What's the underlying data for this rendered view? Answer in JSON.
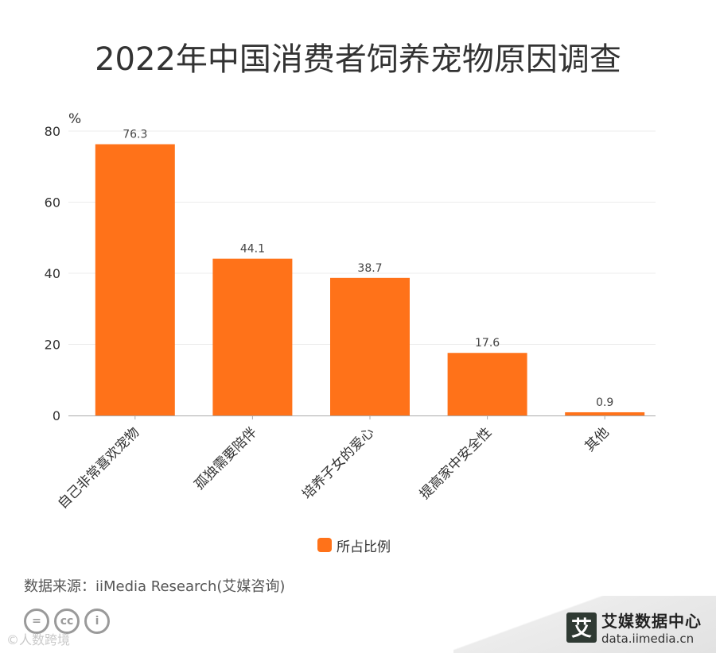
{
  "title": "2022年中国消费者饲养宠物原因调查",
  "chart_data": {
    "type": "bar",
    "title": "2022年中国消费者饲养宠物原因调查",
    "categories": [
      "自己非常喜欢宠物",
      "孤独需要陪伴",
      "培养子女的爱心",
      "提高家中安全性",
      "其他"
    ],
    "series": [
      {
        "name": "所占比例",
        "values": [
          76.3,
          44.1,
          38.7,
          17.6,
          0.9
        ],
        "color": "#ff7219"
      }
    ],
    "ylabel": "%",
    "ylim": [
      0,
      80
    ],
    "yticks": [
      0,
      20,
      40,
      60,
      80
    ],
    "grid": true,
    "legend_position": "bottom"
  },
  "source": "数据来源：iiMedia Research(艾媒咨询)",
  "brand": {
    "logo_char": "艾",
    "name": "艾媒数据中心",
    "url": "data.iimedia.cn",
    "logo_icon": "iimedia-logo-icon"
  },
  "license_icons": [
    "=",
    "cc",
    "i"
  ],
  "watermark": "©人数跨境"
}
